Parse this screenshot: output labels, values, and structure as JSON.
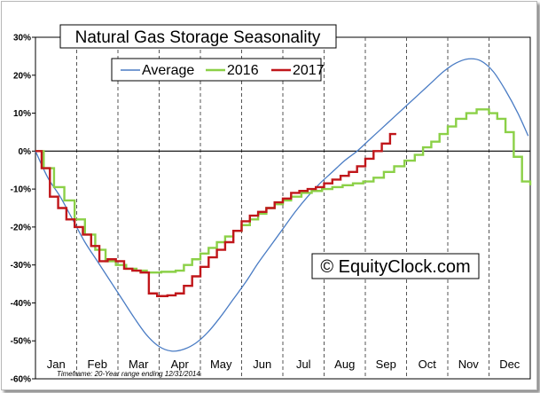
{
  "chart_data": {
    "type": "line",
    "title": "Natural Gas Storage Seasonality",
    "watermark": "© EquityClock.com",
    "footnote": "Timeframe: 20-Year range ending 12/31/2014",
    "xlabel": "",
    "ylabel": "",
    "ylim": [
      -60,
      30
    ],
    "y_ticks": [
      30,
      20,
      10,
      0,
      -10,
      -20,
      -30,
      -40,
      -50,
      -60
    ],
    "y_tick_labels": [
      "30%",
      "20%",
      "10%",
      "0%",
      "-10%",
      "-20%",
      "-30%",
      "-40%",
      "-50%",
      "-60%"
    ],
    "xlim": [
      0,
      12
    ],
    "months": [
      "Jan",
      "Feb",
      "Mar",
      "Apr",
      "May",
      "Jun",
      "Jul",
      "Aug",
      "Sep",
      "Oct",
      "Nov",
      "Dec"
    ],
    "grid": {
      "vertical": true,
      "horizontal": false,
      "zero_line": true
    },
    "legend_position": "top-center",
    "series": [
      {
        "name": "Average",
        "color": "#4a7cc4",
        "style": "smooth",
        "points": [
          [
            0,
            0
          ],
          [
            0.3,
            -7
          ],
          [
            0.6,
            -12
          ],
          [
            0.9,
            -18
          ],
          [
            1.2,
            -24
          ],
          [
            1.5,
            -29
          ],
          [
            1.8,
            -34
          ],
          [
            2.1,
            -39
          ],
          [
            2.4,
            -44
          ],
          [
            2.7,
            -48.5
          ],
          [
            3.0,
            -51.5
          ],
          [
            3.3,
            -52.7
          ],
          [
            3.6,
            -52.2
          ],
          [
            3.9,
            -50.5
          ],
          [
            4.2,
            -47.5
          ],
          [
            4.5,
            -43.5
          ],
          [
            4.8,
            -39
          ],
          [
            5.1,
            -34.5
          ],
          [
            5.4,
            -29.5
          ],
          [
            5.7,
            -25
          ],
          [
            6.0,
            -20.5
          ],
          [
            6.3,
            -16
          ],
          [
            6.6,
            -12
          ],
          [
            6.9,
            -8.5
          ],
          [
            7.2,
            -5.5
          ],
          [
            7.5,
            -2.5
          ],
          [
            7.8,
            0
          ],
          [
            8.1,
            3
          ],
          [
            8.4,
            6
          ],
          [
            8.7,
            9
          ],
          [
            9.0,
            12
          ],
          [
            9.3,
            15
          ],
          [
            9.6,
            18
          ],
          [
            9.9,
            21
          ],
          [
            10.2,
            23.2
          ],
          [
            10.5,
            24.3
          ],
          [
            10.8,
            23.8
          ],
          [
            11.1,
            21
          ],
          [
            11.4,
            16
          ],
          [
            11.7,
            10
          ],
          [
            11.95,
            4
          ]
        ]
      },
      {
        "name": "2016",
        "color": "#8bd047",
        "style": "step",
        "points": [
          [
            0,
            0
          ],
          [
            0.2,
            -4.5
          ],
          [
            0.45,
            -9.5
          ],
          [
            0.7,
            -13
          ],
          [
            0.95,
            -18
          ],
          [
            1.2,
            -22
          ],
          [
            1.45,
            -26
          ],
          [
            1.7,
            -29
          ],
          [
            1.95,
            -30
          ],
          [
            2.2,
            -31
          ],
          [
            2.45,
            -31.5
          ],
          [
            2.7,
            -32
          ],
          [
            3.05,
            -31.8
          ],
          [
            3.4,
            -31.5
          ],
          [
            3.6,
            -30
          ],
          [
            3.8,
            -28.5
          ],
          [
            4.0,
            -27
          ],
          [
            4.2,
            -25.5
          ],
          [
            4.4,
            -24
          ],
          [
            4.6,
            -22.5
          ],
          [
            4.8,
            -21
          ],
          [
            5.0,
            -19.5
          ],
          [
            5.2,
            -18
          ],
          [
            5.4,
            -16.5
          ],
          [
            5.6,
            -15
          ],
          [
            5.8,
            -14
          ],
          [
            6.0,
            -13
          ],
          [
            6.2,
            -12
          ],
          [
            6.45,
            -11
          ],
          [
            6.7,
            -10.5
          ],
          [
            6.95,
            -10
          ],
          [
            7.2,
            -9.5
          ],
          [
            7.45,
            -9
          ],
          [
            7.7,
            -8.5
          ],
          [
            7.95,
            -8
          ],
          [
            8.2,
            -7
          ],
          [
            8.45,
            -5.5
          ],
          [
            8.7,
            -4
          ],
          [
            8.95,
            -2.5
          ],
          [
            9.2,
            -1
          ],
          [
            9.4,
            1
          ],
          [
            9.6,
            2.5
          ],
          [
            9.8,
            4.5
          ],
          [
            10.0,
            6.5
          ],
          [
            10.2,
            8.5
          ],
          [
            10.45,
            10
          ],
          [
            10.7,
            11
          ],
          [
            11.0,
            10
          ],
          [
            11.2,
            8.5
          ],
          [
            11.4,
            5
          ],
          [
            11.6,
            -1.5
          ],
          [
            11.8,
            -8
          ],
          [
            12.0,
            -9
          ]
        ]
      },
      {
        "name": "2017",
        "color": "#c0161a",
        "style": "step",
        "points": [
          [
            0,
            0
          ],
          [
            0.15,
            -4.5
          ],
          [
            0.35,
            -12
          ],
          [
            0.55,
            -15
          ],
          [
            0.75,
            -18
          ],
          [
            0.95,
            -20
          ],
          [
            1.15,
            -22
          ],
          [
            1.35,
            -25
          ],
          [
            1.55,
            -29
          ],
          [
            1.75,
            -28.5
          ],
          [
            1.95,
            -29
          ],
          [
            2.15,
            -31
          ],
          [
            2.35,
            -31.5
          ],
          [
            2.55,
            -32
          ],
          [
            2.75,
            -37.5
          ],
          [
            2.95,
            -38.2
          ],
          [
            3.2,
            -38
          ],
          [
            3.4,
            -37.5
          ],
          [
            3.6,
            -35.5
          ],
          [
            3.8,
            -33
          ],
          [
            4.0,
            -30.5
          ],
          [
            4.2,
            -28
          ],
          [
            4.4,
            -26
          ],
          [
            4.6,
            -24
          ],
          [
            4.8,
            -21
          ],
          [
            5.0,
            -18.5
          ],
          [
            5.2,
            -17
          ],
          [
            5.4,
            -16
          ],
          [
            5.6,
            -15
          ],
          [
            5.8,
            -13.5
          ],
          [
            6.0,
            -12.5
          ],
          [
            6.2,
            -11
          ],
          [
            6.4,
            -10.5
          ],
          [
            6.6,
            -10
          ],
          [
            6.8,
            -9.5
          ],
          [
            7.0,
            -8.5
          ],
          [
            7.2,
            -7.5
          ],
          [
            7.4,
            -6.5
          ],
          [
            7.6,
            -5.5
          ],
          [
            7.8,
            -4
          ],
          [
            8.0,
            -2
          ],
          [
            8.2,
            0
          ],
          [
            8.4,
            2
          ],
          [
            8.6,
            4.5
          ],
          [
            8.75,
            4.5
          ]
        ]
      }
    ]
  }
}
